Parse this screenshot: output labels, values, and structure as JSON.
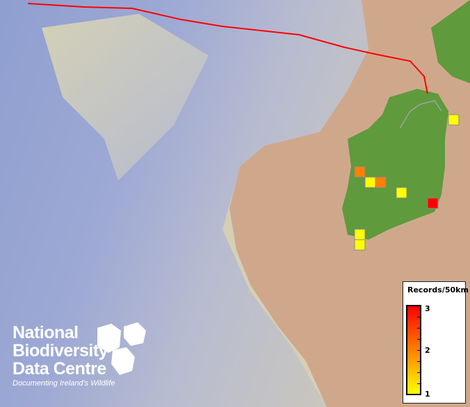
{
  "map": {
    "colors": {
      "sea_deep": "#7f8ec9",
      "sea_shelf": "#c9ccb8",
      "land": "#cfa88c",
      "ireland": "#5f9a3c",
      "boundary": "#ff0000"
    },
    "record_cells": [
      {
        "records": 2
      },
      {
        "records": 1
      },
      {
        "records": 2
      },
      {
        "records": 1
      },
      {
        "records": 3
      },
      {
        "records": 1
      },
      {
        "records": 1
      },
      {
        "records": 1
      }
    ]
  },
  "legend": {
    "title": "Records/50km",
    "max_label": "3",
    "mid_label": "2",
    "min_label": "1",
    "ramp_colors": [
      "#ffff00",
      "#ff8000",
      "#ff0000"
    ]
  },
  "logo": {
    "line1": "National",
    "line2": "Biodiversity",
    "line3": "Data Centre",
    "tagline": "Documenting Ireland's Wildlife"
  }
}
